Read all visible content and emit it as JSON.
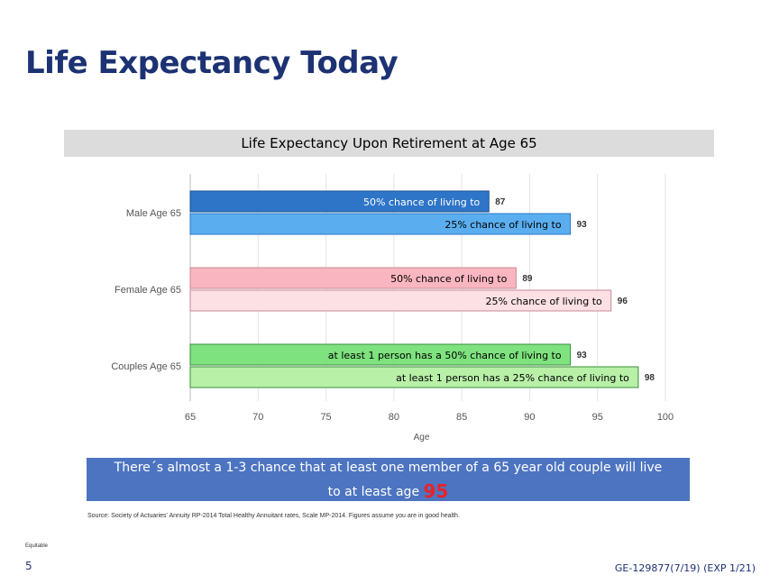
{
  "slide": {
    "title": "Life Expectancy Today",
    "callout_line1": "There´s almost a 1-3 chance that at least one member of a 65 year old couple will live",
    "callout_line2_prefix": "to at least age",
    "callout_highlight": "95",
    "source": "Source: Society of Actuaries' Annuity RP-2014 Total Healthy Annuitant rates, Scale MP-2014. Figures assume you are in good health.",
    "company": "Equitable",
    "page_number": "5",
    "doc_code": "GE-129877(7/19) (EXP 1/21)"
  },
  "chart_data": {
    "type": "bar",
    "orientation": "horizontal",
    "title": "Life Expectancy Upon Retirement at Age 65",
    "xlabel": "Age",
    "xlim": [
      65,
      100
    ],
    "xticks": [
      65,
      70,
      75,
      80,
      85,
      90,
      95,
      100
    ],
    "grid": true,
    "categories": [
      "Male Age 65",
      "Female Age 65",
      "Couples Age 65"
    ],
    "bars": [
      {
        "category": "Male Age 65",
        "label": "50% chance of living to",
        "value": 87,
        "fill": "#2e75c8",
        "border": "#1a4f92",
        "label_color": "#ffffff"
      },
      {
        "category": "Male Age 65",
        "label": "25% chance of living to",
        "value": 93,
        "fill": "#5aaeef",
        "border": "#2e75c8",
        "label_color": "#000000"
      },
      {
        "category": "Female Age 65",
        "label": "50% chance of living to",
        "value": 89,
        "fill": "#f9b6c0",
        "border": "#c98a94",
        "label_color": "#000000"
      },
      {
        "category": "Female Age 65",
        "label": "25% chance of living to",
        "value": 96,
        "fill": "#fde0e4",
        "border": "#c98a94",
        "label_color": "#000000"
      },
      {
        "category": "Couples Age 65",
        "label": "at least 1 person has a 50% chance of living to",
        "value": 93,
        "fill": "#7ee27e",
        "border": "#3a8e3a",
        "label_color": "#000000"
      },
      {
        "category": "Couples Age 65",
        "label": "at least 1 person has a 25% chance of living to",
        "value": 98,
        "fill": "#b8f0a8",
        "border": "#3a8e3a",
        "label_color": "#000000"
      }
    ]
  }
}
